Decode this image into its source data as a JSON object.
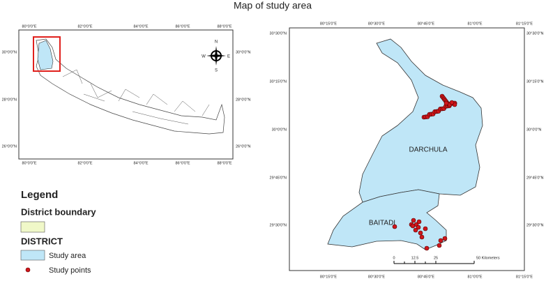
{
  "title": "Map of study area",
  "inset": {
    "lon_labels": [
      "80°0'0\"E",
      "82°0'0\"E",
      "84°0'0\"E",
      "86°0'0\"E",
      "88°0'0\"E"
    ],
    "lat_labels": [
      "30°0'0\"N",
      "28°0'0\"N",
      "26°0'0\"N"
    ],
    "compass": {
      "n": "N",
      "e": "E",
      "s": "S",
      "w": "W"
    }
  },
  "legend": {
    "title": "Legend",
    "boundary": "District boundary",
    "district": "DISTRICT",
    "study_area": "Study area",
    "study_points": "Study points"
  },
  "main": {
    "lon_labels": [
      "80°15'0\"E",
      "80°30'0\"E",
      "80°45'0\"E",
      "81°0'0\"E",
      "81°15'0\"E"
    ],
    "lat_labels": [
      "30°30'0\"N",
      "30°15'0\"N",
      "30°0'0\"N",
      "29°45'0\"N",
      "29°30'0\"N"
    ],
    "districts": [
      "DARCHULA",
      "BAITADI"
    ],
    "scale": [
      "0",
      "12.5",
      "25",
      "50 Kilometers"
    ]
  }
}
